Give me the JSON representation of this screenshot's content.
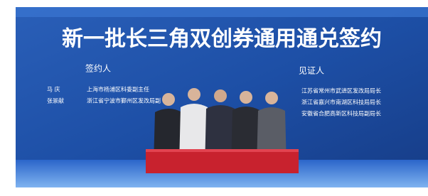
{
  "screen": {
    "title": "新一批长三角双创券通用通兑签约",
    "signers": {
      "heading": "签约人",
      "rows": [
        {
          "name": "马 庆",
          "title": "上海市杨浦区科委副主任"
        },
        {
          "name": "张景献",
          "title": "浙江省宁波市鄞州区发改局副"
        }
      ]
    },
    "witnesses": {
      "heading": "见证人",
      "rows": [
        {
          "title": "江苏省常州市武进区发改局局长"
        },
        {
          "title": "浙江省嘉兴市南湖区科技局局长"
        },
        {
          "title": "安徽省合肥高新区科技局副局长"
        }
      ]
    }
  }
}
